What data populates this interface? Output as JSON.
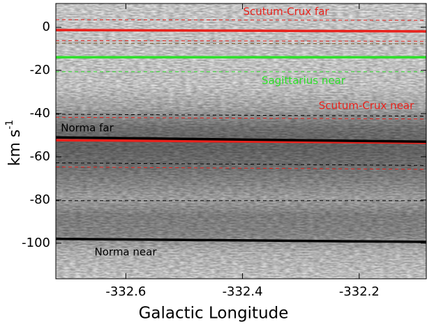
{
  "chart_data": {
    "type": "line",
    "xlabel": "Galactic Longitude",
    "ylabel": {
      "text": "km s",
      "sup": "-1"
    },
    "xlim": [
      -332.72,
      -332.085
    ],
    "xticks": [
      -332.6,
      -332.4,
      -332.2
    ],
    "ylim": [
      -116.5,
      11
    ],
    "yticks": [
      0,
      -20,
      -40,
      -60,
      -80,
      -100
    ],
    "series": [
      {
        "name": "Scutum-Crux far",
        "color": "#e8221c",
        "x": [
          -332.72,
          -332.085
        ],
        "values": [
          -1.3,
          -1.9
        ]
      },
      {
        "name": "Sagittarius near",
        "color": "#2ee02a",
        "x": [
          -332.72,
          -332.085
        ],
        "values": [
          -13.9,
          -13.9
        ]
      },
      {
        "name": "Scutum-Crux near",
        "color": "#e8221c",
        "x": [
          -332.72,
          -332.085
        ],
        "values": [
          -52.3,
          -53.5
        ]
      },
      {
        "name": "Norma far",
        "color": "#000000",
        "x": [
          -332.72,
          -332.085
        ],
        "values": [
          -51,
          -53
        ]
      },
      {
        "name": "Norma near",
        "color": "#000000",
        "x": [
          -332.72,
          -332.085
        ],
        "values": [
          -98,
          -99.4
        ]
      },
      {
        "color": "#e8221c",
        "dashed": true,
        "x": [
          -332.72,
          -332.085
        ],
        "values": [
          3.5,
          3.2
        ]
      },
      {
        "color": "#e8221c",
        "dashed": true,
        "x": [
          -332.72,
          -332.085
        ],
        "values": [
          -6.2,
          -6.5
        ]
      },
      {
        "color": "#7a5a2a",
        "dashed": true,
        "x": [
          -332.72,
          -332.085
        ],
        "values": [
          -7.4,
          -7.7
        ]
      },
      {
        "color": "#2ee02a",
        "dashed": true,
        "x": [
          -332.72,
          -332.085
        ],
        "values": [
          -20.6,
          -20.6
        ]
      },
      {
        "color": "#000000",
        "dashed": true,
        "x": [
          -332.72,
          -332.085
        ],
        "values": [
          -40.3,
          -41.2
        ]
      },
      {
        "color": "#e8221c",
        "dashed": true,
        "x": [
          -332.72,
          -332.085
        ],
        "values": [
          -41.7,
          -42.5
        ]
      },
      {
        "color": "#000000",
        "dashed": true,
        "x": [
          -332.72,
          -332.085
        ],
        "values": [
          -62.8,
          -64
        ]
      },
      {
        "color": "#e8221c",
        "dashed": true,
        "x": [
          -332.72,
          -332.085
        ],
        "values": [
          -64.7,
          -65.8
        ]
      },
      {
        "color": "#000000",
        "dashed": true,
        "x": [
          -332.72,
          -332.085
        ],
        "values": [
          -80.3,
          -80.3
        ]
      }
    ]
  }
}
